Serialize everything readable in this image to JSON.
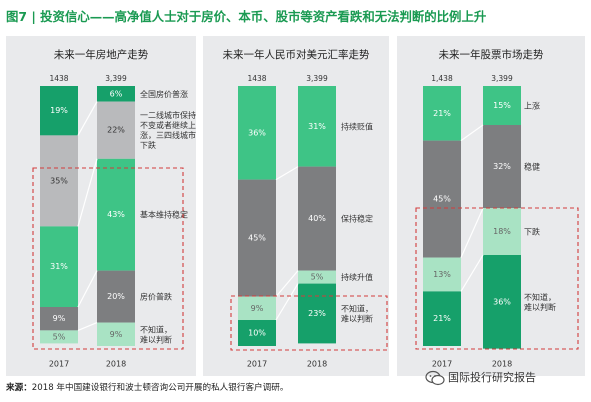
{
  "header": {
    "title": "图7 | 投资信心——高净值人士对于房价、本币、股市等资产看跌和无法判断的比例上升"
  },
  "footer": {
    "source_label": "来源：",
    "source_text": "2018 年中国建设银行和波士顿咨询公司开展的私人银行客户调研。",
    "watermark": "国际投行研究报告"
  },
  "colors": {
    "green_dark": "#16a06a",
    "green_mid": "#3ec486",
    "green_light": "#a9e3c4",
    "gray_dark": "#7d7e80",
    "gray_light": "#b9babc",
    "panel_bg": "#e9eaec",
    "highlight_box": "#d23c3c",
    "title_green": "#1a9a52"
  },
  "chart_data": [
    {
      "type": "bar",
      "stacked": true,
      "title": "未来一年房地产走势",
      "categories": [
        "2017",
        "2018"
      ],
      "sample_sizes": [
        "1438",
        "3,399"
      ],
      "series": [
        {
          "name": "全国房价普涨",
          "values": [
            19,
            6
          ],
          "color": "#16a06a"
        },
        {
          "name": "一二线城市保持不变或者继续上涨，三四线城市下跌",
          "values": [
            35,
            22
          ],
          "color": "#b9babc"
        },
        {
          "name": "基本维持稳定",
          "values": [
            31,
            43
          ],
          "color": "#3ec486"
        },
        {
          "name": "房价普跌",
          "values": [
            9,
            20
          ],
          "color": "#7d7e80"
        },
        {
          "name": "不知道，难以判断",
          "values": [
            5,
            9
          ],
          "color": "#a9e3c4"
        }
      ],
      "legend_labels": [
        "全国房价普涨",
        "一二线城市保持\n不变或者继续上\n涨，三四线城市\n下跌",
        "基本维持稳定",
        "房价普跌",
        "不知道，\n难以判断"
      ],
      "ylim": [
        0,
        100
      ],
      "highlight": "房价普跌 and 不知道，难以判断 (dashed red box)"
    },
    {
      "type": "bar",
      "stacked": true,
      "title": "未来一年人民币对美元汇率走势",
      "categories": [
        "2017",
        "2018"
      ],
      "sample_sizes": [
        "1438",
        "3,399"
      ],
      "series": [
        {
          "name": "持续贬值",
          "values": [
            36,
            31
          ],
          "color": "#3ec486"
        },
        {
          "name": "保持稳定",
          "values": [
            45,
            40
          ],
          "color": "#7d7e80"
        },
        {
          "name": "持续升值",
          "values": [
            9,
            5
          ],
          "color": "#a9e3c4"
        },
        {
          "name": "不知道，难以判断",
          "values": [
            10,
            23
          ],
          "color": "#16a06a"
        }
      ],
      "legend_labels": [
        "持续贬值",
        "保持稳定",
        "持续升值",
        "不知道，\n难以判断"
      ],
      "ylim": [
        0,
        100
      ],
      "highlight": "不知道，难以判断 (dashed red box)"
    },
    {
      "type": "bar",
      "stacked": true,
      "title": "未来一年股票市场走势",
      "categories": [
        "2017",
        "2018"
      ],
      "sample_sizes": [
        "1,438",
        "3,399"
      ],
      "series": [
        {
          "name": "上涨",
          "values": [
            21,
            15
          ],
          "color": "#3ec486"
        },
        {
          "name": "稳健",
          "values": [
            45,
            32
          ],
          "color": "#7d7e80"
        },
        {
          "name": "下跌",
          "values": [
            13,
            18
          ],
          "color": "#a9e3c4"
        },
        {
          "name": "不知道，难以判断",
          "values": [
            21,
            36
          ],
          "color": "#16a06a"
        }
      ],
      "legend_labels": [
        "上涨",
        "稳健",
        "下跌",
        "不知道，\n难以判断"
      ],
      "ylim": [
        0,
        100
      ],
      "highlight": "下跌 and 不知道，难以判断 (dashed red box)"
    }
  ]
}
